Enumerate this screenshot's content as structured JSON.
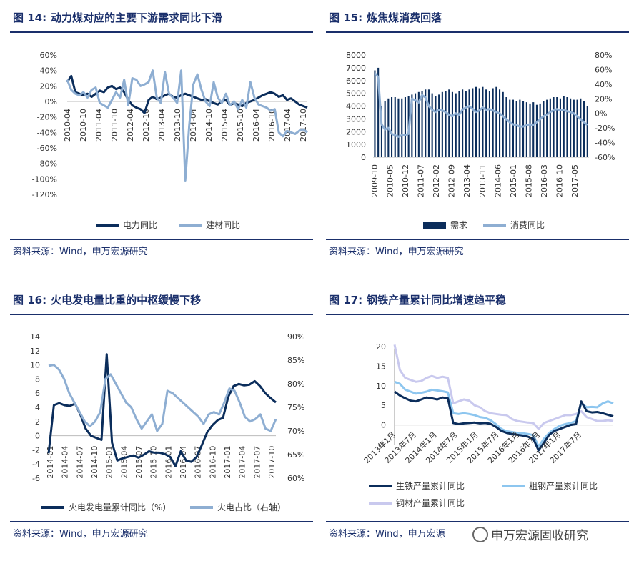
{
  "panels": {
    "p14": {
      "fig": "图 14:",
      "title": "动力煤对应的主要下游需求同比下滑",
      "source": "资料来源：Wind，申万宏源研究"
    },
    "p15": {
      "fig": "图 15:",
      "title": "炼焦煤消费回落",
      "source": "资料来源：Wind，申万宏源研究"
    },
    "p16": {
      "fig": "图 16:",
      "title": "火电发电量比重的中枢缓慢下移",
      "source": "资料来源：Wind，申万宏源研究"
    },
    "p17": {
      "fig": "图 17:",
      "title": "钢铁产量累计同比增速趋平稳",
      "source": "资料来源：Wind，申万宏源"
    }
  },
  "watermark": "申万宏源固收研究",
  "colors": {
    "dark": "#0b2d5b",
    "light": "#8eaed2",
    "sky": "#8dc6ef",
    "lavender": "#c9c9ee",
    "accent": "#1a2f6b"
  },
  "chart_data": [
    {
      "id": "c14",
      "type": "line",
      "ylim": [
        -1.2,
        0.6
      ],
      "yticks": [
        "60%",
        "40%",
        "20%",
        "0%",
        "-20%",
        "-40%",
        "-60%",
        "-80%",
        "-100%",
        "-120%"
      ],
      "x_labels": [
        "2010-04",
        "2010-10",
        "2011-04",
        "2011-10",
        "2012-04",
        "2012-10",
        "2013-04",
        "2013-10",
        "2014-04",
        "2014-10",
        "2015-04",
        "2015-10",
        "2016-04",
        "2016-10",
        "2017-04",
        "2017-10"
      ],
      "series": [
        {
          "name": "电力同比",
          "color": "dark",
          "values": [
            0.25,
            0.33,
            0.12,
            0.1,
            0.08,
            0.1,
            0.06,
            0.1,
            0.14,
            0.12,
            0.18,
            0.2,
            0.16,
            0.18,
            0.12,
            0.02,
            -0.05,
            -0.08,
            -0.1,
            -0.15,
            0.02,
            0.06,
            0.03,
            0.05,
            0.08,
            0.1,
            0.06,
            0.05,
            0.08,
            0.1,
            0.08,
            0.06,
            0.04,
            0.02,
            0.03,
            0.0,
            -0.02,
            -0.04,
            0.0,
            0.02,
            -0.05,
            -0.02,
            -0.04,
            -0.06,
            -0.02,
            0.0,
            0.02,
            0.05,
            0.08,
            0.1,
            0.12,
            0.1,
            0.06,
            0.08,
            0.02,
            0.04,
            0.0,
            -0.04,
            -0.06,
            -0.08
          ]
        },
        {
          "name": "建材同比",
          "color": "light",
          "values": [
            0.28,
            0.15,
            0.1,
            0.08,
            0.12,
            0.05,
            0.15,
            0.18,
            -0.02,
            -0.05,
            -0.08,
            0.02,
            0.12,
            0.05,
            0.28,
            -0.05,
            0.3,
            0.28,
            0.2,
            0.22,
            0.25,
            0.4,
            0.05,
            -0.02,
            0.38,
            0.1,
            0.05,
            -0.02,
            0.4,
            -1.02,
            -0.3,
            0.22,
            0.35,
            0.15,
            0.0,
            -0.06,
            0.25,
            0.05,
            -0.02,
            0.1,
            -0.05,
            0.0,
            -0.1,
            0.02,
            -0.08,
            0.25,
            0.05,
            -0.04,
            -0.06,
            -0.08,
            -0.12,
            -0.1,
            -0.4,
            -0.45,
            -0.38,
            -0.4,
            -0.42,
            -0.38,
            -0.36,
            -0.4
          ]
        }
      ]
    },
    {
      "id": "c15",
      "type": "bar+line",
      "ylim_left": [
        0,
        8000
      ],
      "ylim_right": [
        -0.6,
        0.8
      ],
      "yticks_left": [
        "8000",
        "7000",
        "6000",
        "5000",
        "4000",
        "3000",
        "2000",
        "1000",
        "0"
      ],
      "yticks_right": [
        "80%",
        "60%",
        "40%",
        "20%",
        "0%",
        "-20%",
        "-40%",
        "-60%"
      ],
      "x_labels": [
        "2009-10",
        "2010-05",
        "2010-12",
        "2011-07",
        "2012-02",
        "2012-09",
        "2013-04",
        "2013-11",
        "2014-06",
        "2015-01",
        "2015-08",
        "2016-03",
        "2016-10",
        "2017-05"
      ],
      "bars": {
        "name": "需求",
        "color": "dark",
        "values": [
          6800,
          7000,
          4000,
          4400,
          4600,
          4700,
          4700,
          4600,
          4600,
          4700,
          4800,
          4900,
          5000,
          5100,
          5200,
          5300,
          5300,
          5000,
          4800,
          4900,
          5100,
          5200,
          5300,
          5100,
          5000,
          5200,
          5300,
          5200,
          5300,
          5400,
          5500,
          5400,
          5500,
          5300,
          5200,
          5400,
          5500,
          5300,
          5100,
          4700,
          4500,
          4500,
          4400,
          4500,
          4400,
          4300,
          4200,
          4300,
          4100,
          4200,
          4400,
          4500,
          4600,
          4700,
          4700,
          4600,
          4800,
          4700,
          4600,
          4500,
          4500,
          4600,
          4400,
          4000
        ]
      },
      "line": {
        "name": "消费同比",
        "color": "light",
        "values": [
          0.55,
          0.5,
          -0.15,
          -0.22,
          -0.2,
          -0.28,
          -0.3,
          -0.32,
          -0.3,
          -0.3,
          -0.28,
          0.2,
          0.18,
          0.15,
          0.25,
          0.22,
          0.1,
          0.05,
          0.02,
          0.05,
          0.04,
          0.02,
          -0.02,
          -0.04,
          0.0,
          -0.02,
          0.05,
          0.08,
          0.1,
          0.06,
          0.02,
          0.04,
          0.08,
          0.05,
          0.06,
          0.04,
          0.02,
          0.0,
          -0.04,
          -0.08,
          -0.12,
          -0.15,
          -0.16,
          -0.18,
          -0.18,
          -0.16,
          -0.15,
          -0.16,
          -0.12,
          -0.08,
          -0.04,
          -0.02,
          0.02,
          0.04,
          0.06,
          0.04,
          0.05,
          0.03,
          0.02,
          0.0,
          -0.04,
          -0.08,
          -0.12,
          -0.16
        ]
      }
    },
    {
      "id": "c16",
      "type": "line",
      "ylim_left": [
        -6,
        14
      ],
      "ylim_right": [
        0.6,
        0.9
      ],
      "yticks_left": [
        "14",
        "12",
        "10",
        "8",
        "6",
        "4",
        "2",
        "0",
        "-2",
        "-4",
        "-6"
      ],
      "yticks_right": [
        "90%",
        "85%",
        "80%",
        "75%",
        "70%",
        "65%",
        "60%"
      ],
      "x_labels": [
        "2014-01",
        "2014-04",
        "2014-07",
        "2014-10",
        "2015-01",
        "2015-04",
        "2015-07",
        "2015-10",
        "2016-01",
        "2016-04",
        "2016-07",
        "2016-10",
        "2017-01",
        "2017-04",
        "2017-07",
        "2017-10"
      ],
      "series": [
        {
          "name": "火电发电量累计同比（%）",
          "color": "dark",
          "values": [
            -2.5,
            4.3,
            4.6,
            4.3,
            4.2,
            4.5,
            3.0,
            1.0,
            0.0,
            -0.3,
            -0.6,
            11.5,
            -1.0,
            -3.5,
            -3.2,
            -3.0,
            -2.8,
            -3.1,
            -2.7,
            -2.2,
            -2.4,
            -2.4,
            -2.6,
            -3.0,
            -4.3,
            -2.2,
            -3.5,
            -3.7,
            -3.0,
            -1.3,
            0.5,
            1.5,
            2.2,
            2.5,
            5.5,
            7.0,
            7.3,
            7.1,
            7.2,
            7.7,
            7.0,
            6.0,
            5.3,
            4.7
          ]
        },
        {
          "name": "火电占比（右轴）",
          "color": "light",
          "values": [
            0.838,
            0.84,
            0.83,
            0.81,
            0.78,
            0.76,
            0.74,
            0.72,
            0.71,
            0.72,
            0.74,
            0.81,
            0.82,
            0.8,
            0.78,
            0.76,
            0.75,
            0.725,
            0.705,
            0.72,
            0.735,
            0.7,
            0.715,
            0.785,
            0.78,
            0.77,
            0.76,
            0.75,
            0.74,
            0.73,
            0.715,
            0.735,
            0.74,
            0.735,
            0.76,
            0.79,
            0.785,
            0.76,
            0.73,
            0.72,
            0.725,
            0.735,
            0.705,
            0.7,
            0.725
          ]
        }
      ]
    },
    {
      "id": "c17",
      "type": "line",
      "ylim": [
        -5,
        20
      ],
      "yticks": [
        "20",
        "15",
        "10",
        "5",
        "0",
        "-5"
      ],
      "x_labels": [
        "2013年1月",
        "2013年7月",
        "2014年1月",
        "2014年7月",
        "2015年1月",
        "2015年7月",
        "2016年1月",
        "2016年7月",
        "2017年1月",
        "2017年7月"
      ],
      "series": [
        {
          "name": "生铁产量累计同比",
          "color": "dark",
          "values": [
            8.5,
            7.5,
            6.8,
            6.2,
            6.0,
            6.5,
            7.0,
            6.8,
            6.5,
            7.0,
            6.8,
            0.5,
            0.2,
            0.4,
            0.5,
            0.6,
            0.4,
            0.5,
            0.3,
            -0.5,
            -1.5,
            -2.0,
            -2.3,
            -2.5,
            -2.7,
            -3.0,
            -3.5,
            -6.5,
            -4.5,
            -2.5,
            -1.5,
            -1.0,
            -0.5,
            0.0,
            0.2,
            6.0,
            3.5,
            3.2,
            3.3,
            3.0,
            2.6,
            2.2
          ]
        },
        {
          "name": "粗钢产量累计同比",
          "color": "sky",
          "values": [
            11.0,
            10.5,
            9.0,
            8.5,
            8.0,
            8.2,
            8.5,
            9.0,
            8.8,
            8.6,
            8.3,
            3.0,
            2.8,
            3.0,
            2.8,
            2.5,
            2.0,
            1.8,
            1.2,
            0.2,
            -1.0,
            -1.6,
            -1.8,
            -2.0,
            -2.1,
            -2.3,
            -2.6,
            -5.5,
            -3.5,
            -2.0,
            -1.0,
            -0.2,
            0.2,
            0.5,
            1.0,
            5.5,
            4.5,
            4.6,
            4.5,
            5.5,
            6.0,
            5.5
          ]
        },
        {
          "name": "钢材产量累计同比",
          "color": "lavender",
          "values": [
            20.5,
            14.0,
            12.0,
            11.5,
            11.0,
            11.2,
            12.0,
            12.5,
            12.0,
            12.3,
            12.0,
            5.5,
            6.0,
            6.5,
            6.2,
            5.0,
            4.5,
            3.5,
            3.0,
            2.8,
            2.6,
            2.5,
            1.5,
            1.0,
            0.8,
            0.6,
            0.5,
            -1.0,
            0.5,
            1.0,
            1.5,
            2.0,
            2.5,
            2.5,
            2.8,
            3.5,
            2.0,
            1.5,
            1.0,
            1.0,
            1.2,
            1.0
          ]
        }
      ]
    }
  ]
}
